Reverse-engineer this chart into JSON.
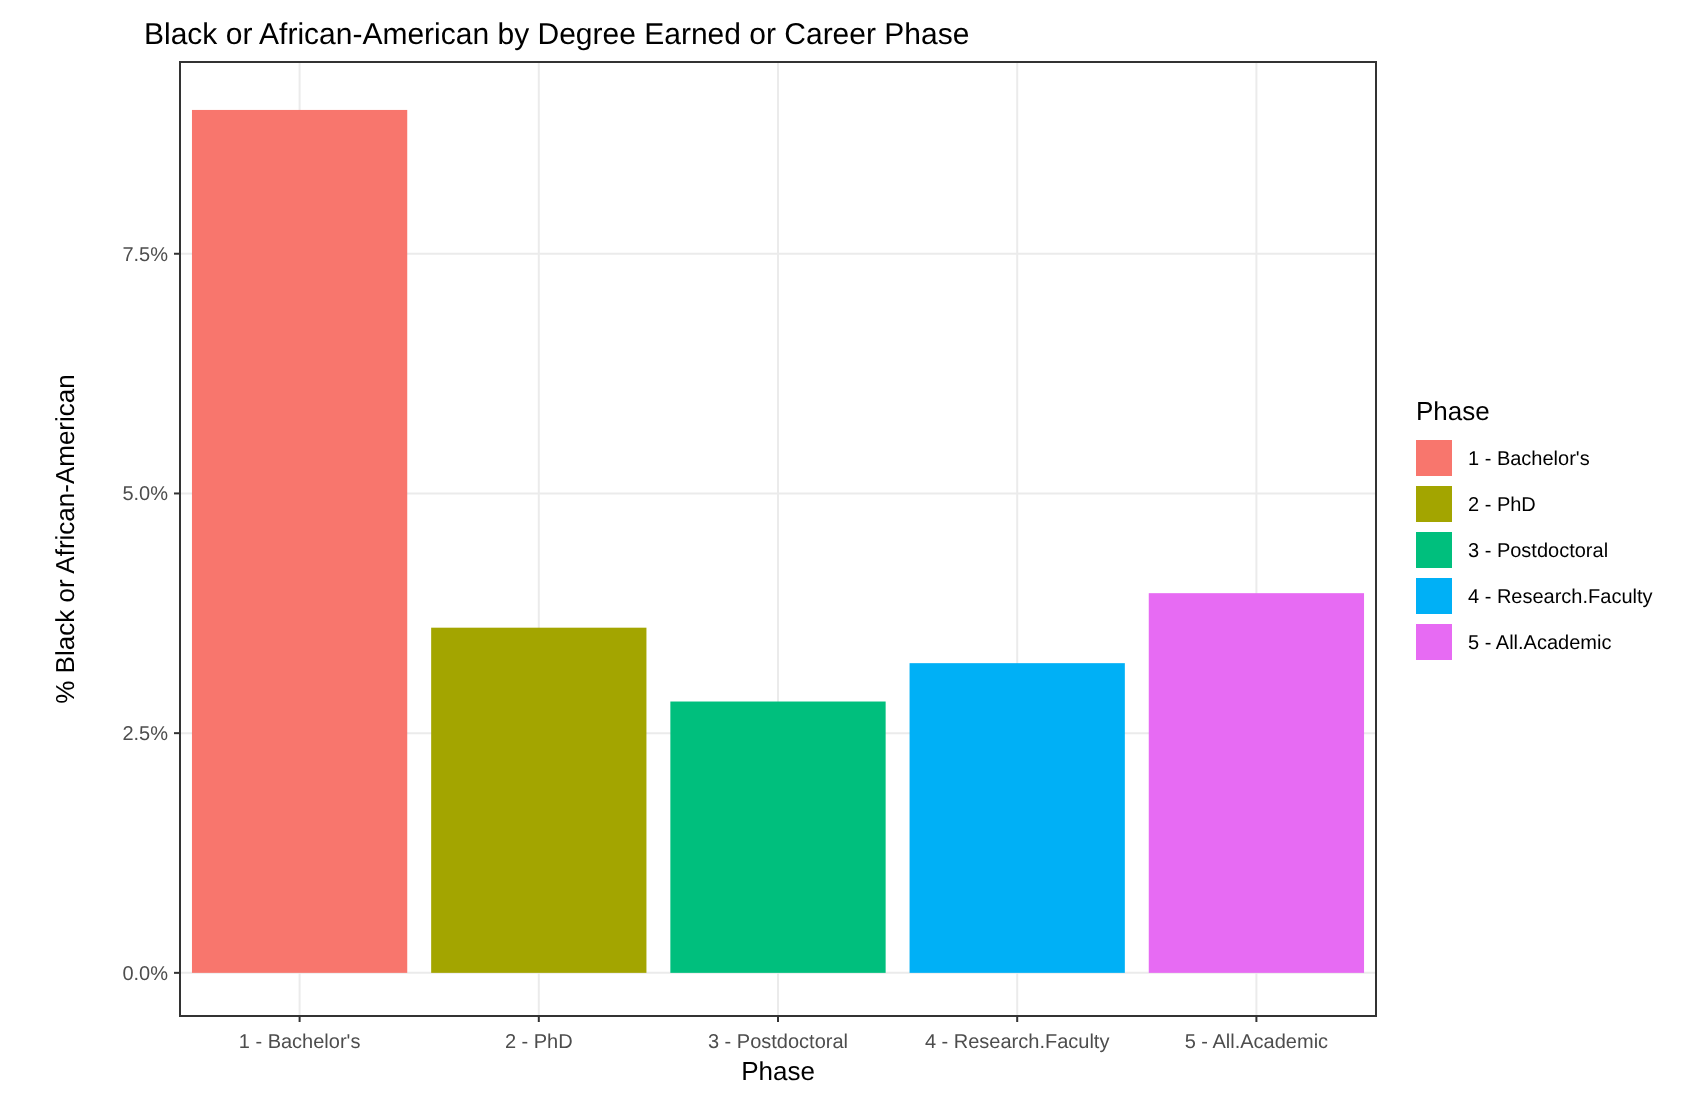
{
  "chart_data": {
    "type": "bar",
    "title": "Black or African-American by Degree Earned or Career Phase",
    "xlabel": "Phase",
    "ylabel": "% Black or African-American",
    "legend_title": "Phase",
    "categories": [
      "1 - Bachelor's",
      "2 - PhD",
      "3 - Postdoctoral",
      "4 - Research.Faculty",
      "5 - All.Academic"
    ],
    "stacked": true,
    "series": [
      {
        "name": "1 - Bachelor's",
        "color": "#f8766d",
        "values": [
          9.0,
          null,
          null,
          null,
          null
        ]
      },
      {
        "name": "2 - PhD",
        "color": "#a3a500",
        "values": [
          null,
          3.6,
          null,
          null,
          null
        ]
      },
      {
        "name": "3 - Postdoctoral",
        "color": "#00bf7d",
        "values": [
          null,
          null,
          2.83,
          null,
          null
        ]
      },
      {
        "name": "4 - Research.Faculty",
        "color": "#00b0f6",
        "values": [
          null,
          null,
          null,
          3.23,
          null
        ]
      },
      {
        "name": "5 - All.Academic",
        "color": "#e76bf3",
        "values": [
          null,
          null,
          null,
          null,
          3.96
        ]
      }
    ],
    "ylim": [
      -0.45,
      9.5
    ],
    "yticks": [
      {
        "value": 0,
        "label": "0.0%"
      },
      {
        "value": 2.5,
        "label": "2.5%"
      },
      {
        "value": 5,
        "label": "5.0%"
      },
      {
        "value": 7.5,
        "label": "7.5%"
      }
    ],
    "grid": true,
    "legend": "right"
  }
}
